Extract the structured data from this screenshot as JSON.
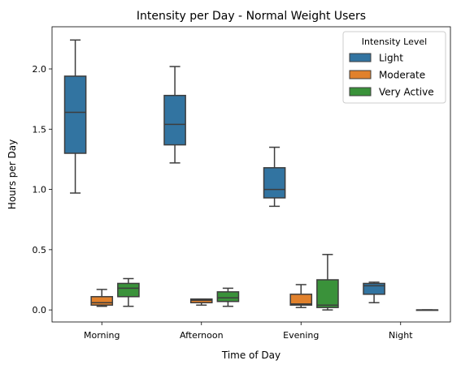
{
  "chart_data": {
    "type": "box",
    "title": "Intensity per Day - Normal Weight Users",
    "xlabel": "Time of Day",
    "ylabel": "Hours per Day",
    "ylim": [
      -0.1,
      2.35
    ],
    "yticks": [
      0.0,
      0.5,
      1.0,
      1.5,
      2.0
    ],
    "ytick_labels": [
      "0.0",
      "0.5",
      "1.0",
      "1.5",
      "2.0"
    ],
    "categories": [
      "Morning",
      "Afternoon",
      "Evening",
      "Night"
    ],
    "legend": {
      "title": "Intensity Level",
      "position": "top-right"
    },
    "series": [
      {
        "name": "Light",
        "color": "#3274a1",
        "boxes": [
          {
            "whislo": 0.97,
            "q1": 1.3,
            "median": 1.64,
            "q3": 1.94,
            "whishi": 2.24
          },
          {
            "whislo": 1.22,
            "q1": 1.37,
            "median": 1.54,
            "q3": 1.78,
            "whishi": 2.02
          },
          {
            "whislo": 0.86,
            "q1": 0.93,
            "median": 1.0,
            "q3": 1.18,
            "whishi": 1.35
          },
          {
            "whislo": 0.06,
            "q1": 0.13,
            "median": 0.2,
            "q3": 0.22,
            "whishi": 0.23
          }
        ]
      },
      {
        "name": "Moderate",
        "color": "#e1812c",
        "boxes": [
          {
            "whislo": 0.03,
            "q1": 0.04,
            "median": 0.06,
            "q3": 0.11,
            "whishi": 0.17
          },
          {
            "whislo": 0.04,
            "q1": 0.06,
            "median": 0.08,
            "q3": 0.09,
            "whishi": 0.09
          },
          {
            "whislo": 0.02,
            "q1": 0.04,
            "median": 0.05,
            "q3": 0.13,
            "whishi": 0.21
          },
          null
        ]
      },
      {
        "name": "Very Active",
        "color": "#3a923a",
        "boxes": [
          {
            "whislo": 0.03,
            "q1": 0.11,
            "median": 0.18,
            "q3": 0.22,
            "whishi": 0.26
          },
          {
            "whislo": 0.03,
            "q1": 0.07,
            "median": 0.1,
            "q3": 0.15,
            "whishi": 0.18
          },
          {
            "whislo": 0.0,
            "q1": 0.02,
            "median": 0.04,
            "q3": 0.25,
            "whishi": 0.46
          },
          {
            "whislo": 0.0,
            "q1": 0.0,
            "median": 0.0,
            "q3": 0.0,
            "whishi": 0.0
          }
        ]
      }
    ]
  }
}
